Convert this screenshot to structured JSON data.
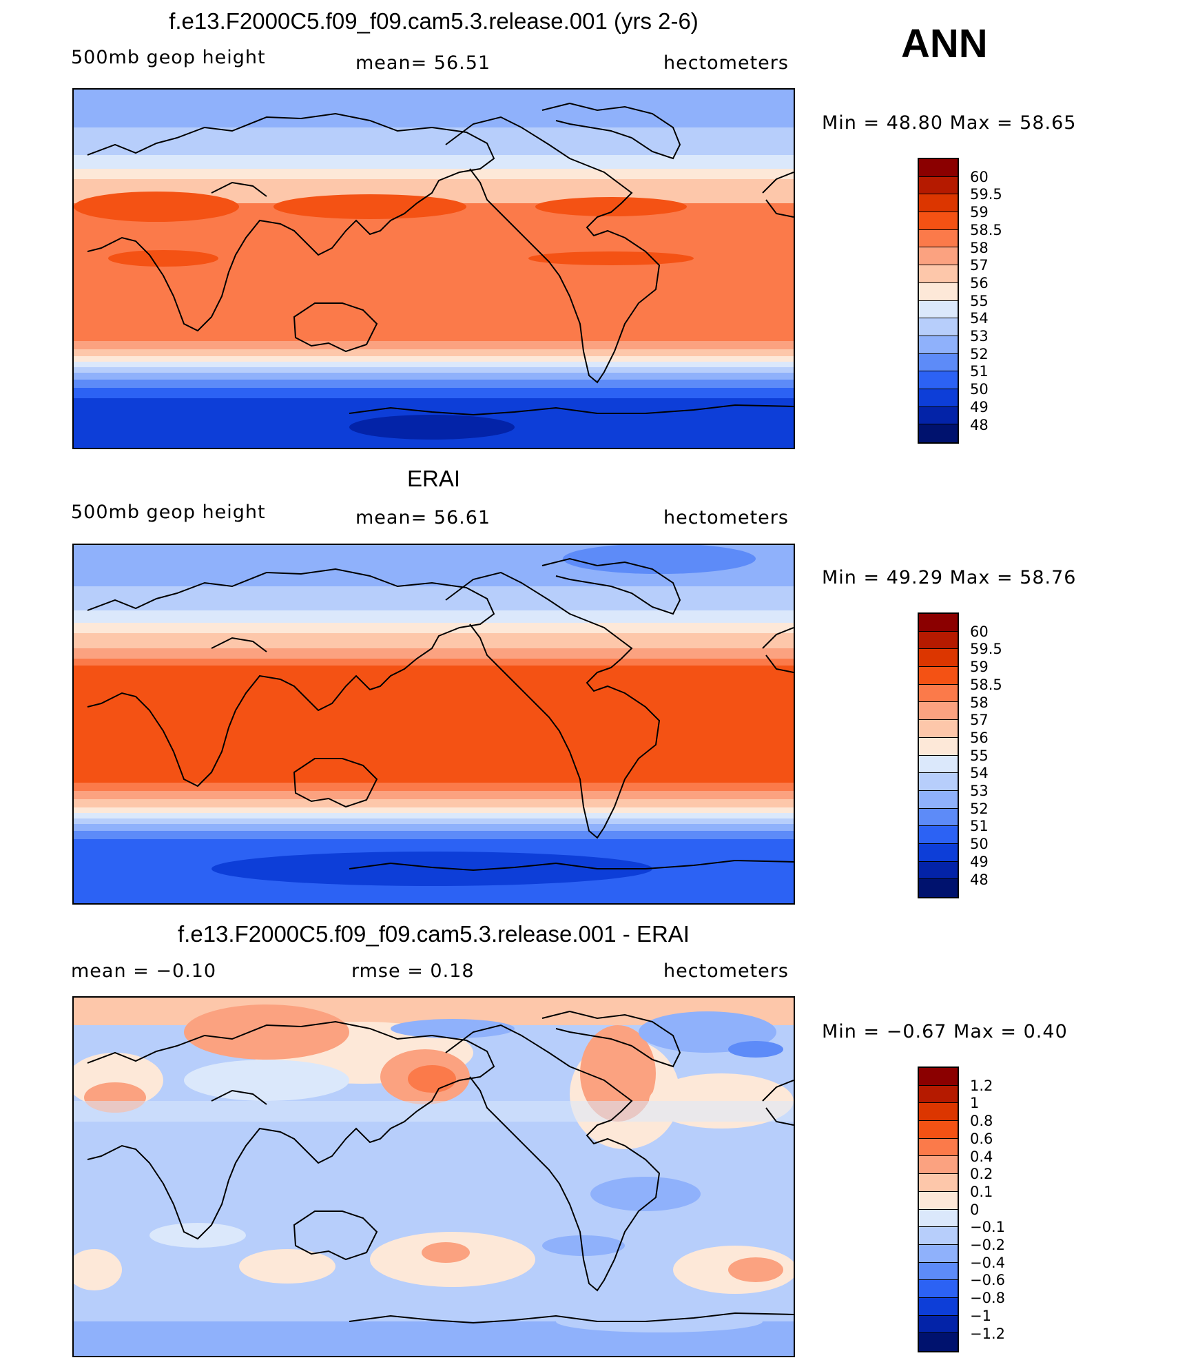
{
  "season": "ANN",
  "panels": [
    {
      "title": "f.e13.F2000C5.f09_f09.cam5.3.release.001 (yrs 2-6)",
      "variable": "500mb geop height",
      "stat1": "mean=   56.51",
      "stat2": "",
      "units": "hectometers",
      "minmax": "Min =   48.80  Max =   58.65",
      "kind": "model"
    },
    {
      "title": "ERAI",
      "variable": "500mb geop height",
      "stat1": "mean=   56.61",
      "stat2": "",
      "units": "hectometers",
      "minmax": "Min =   49.29  Max =   58.76",
      "kind": "obs"
    },
    {
      "title": "f.e13.F2000C5.f09_f09.cam5.3.release.001 - ERAI",
      "variable": "",
      "stat1": "mean =   −0.10",
      "stat2": "rmse =    0.18",
      "units": "hectometers",
      "minmax": "Min =   −0.67  Max =     0.40",
      "kind": "diff"
    }
  ],
  "colorbars": {
    "height": {
      "labels": [
        "60",
        "59.5",
        "59",
        "58.5",
        "58",
        "57",
        "56",
        "55",
        "54",
        "53",
        "52",
        "51",
        "50",
        "49",
        "48"
      ],
      "colors": [
        "#8b0000",
        "#b51a00",
        "#dc3600",
        "#f45214",
        "#fb7a4a",
        "#fba280",
        "#fdc7aa",
        "#fde8d8",
        "#dbe8fb",
        "#b7cefb",
        "#8fb1fb",
        "#5d8bf8",
        "#2c62f4",
        "#0d3ed8",
        "#0323a8",
        "#00126e"
      ]
    },
    "diff": {
      "labels": [
        "1.2",
        "1",
        "0.8",
        "0.6",
        "0.4",
        "0.2",
        "0.1",
        "0",
        "−0.1",
        "−0.2",
        "−0.4",
        "−0.6",
        "−0.8",
        "−1",
        "−1.2"
      ],
      "colors": [
        "#8b0000",
        "#b51a00",
        "#dc3600",
        "#f45214",
        "#fb7a4a",
        "#fba280",
        "#fdc7aa",
        "#fde8d8",
        "#dbe8fb",
        "#b7cefb",
        "#8fb1fb",
        "#5d8bf8",
        "#2c62f4",
        "#0d3ed8",
        "#0323a8",
        "#00126e"
      ]
    }
  }
}
